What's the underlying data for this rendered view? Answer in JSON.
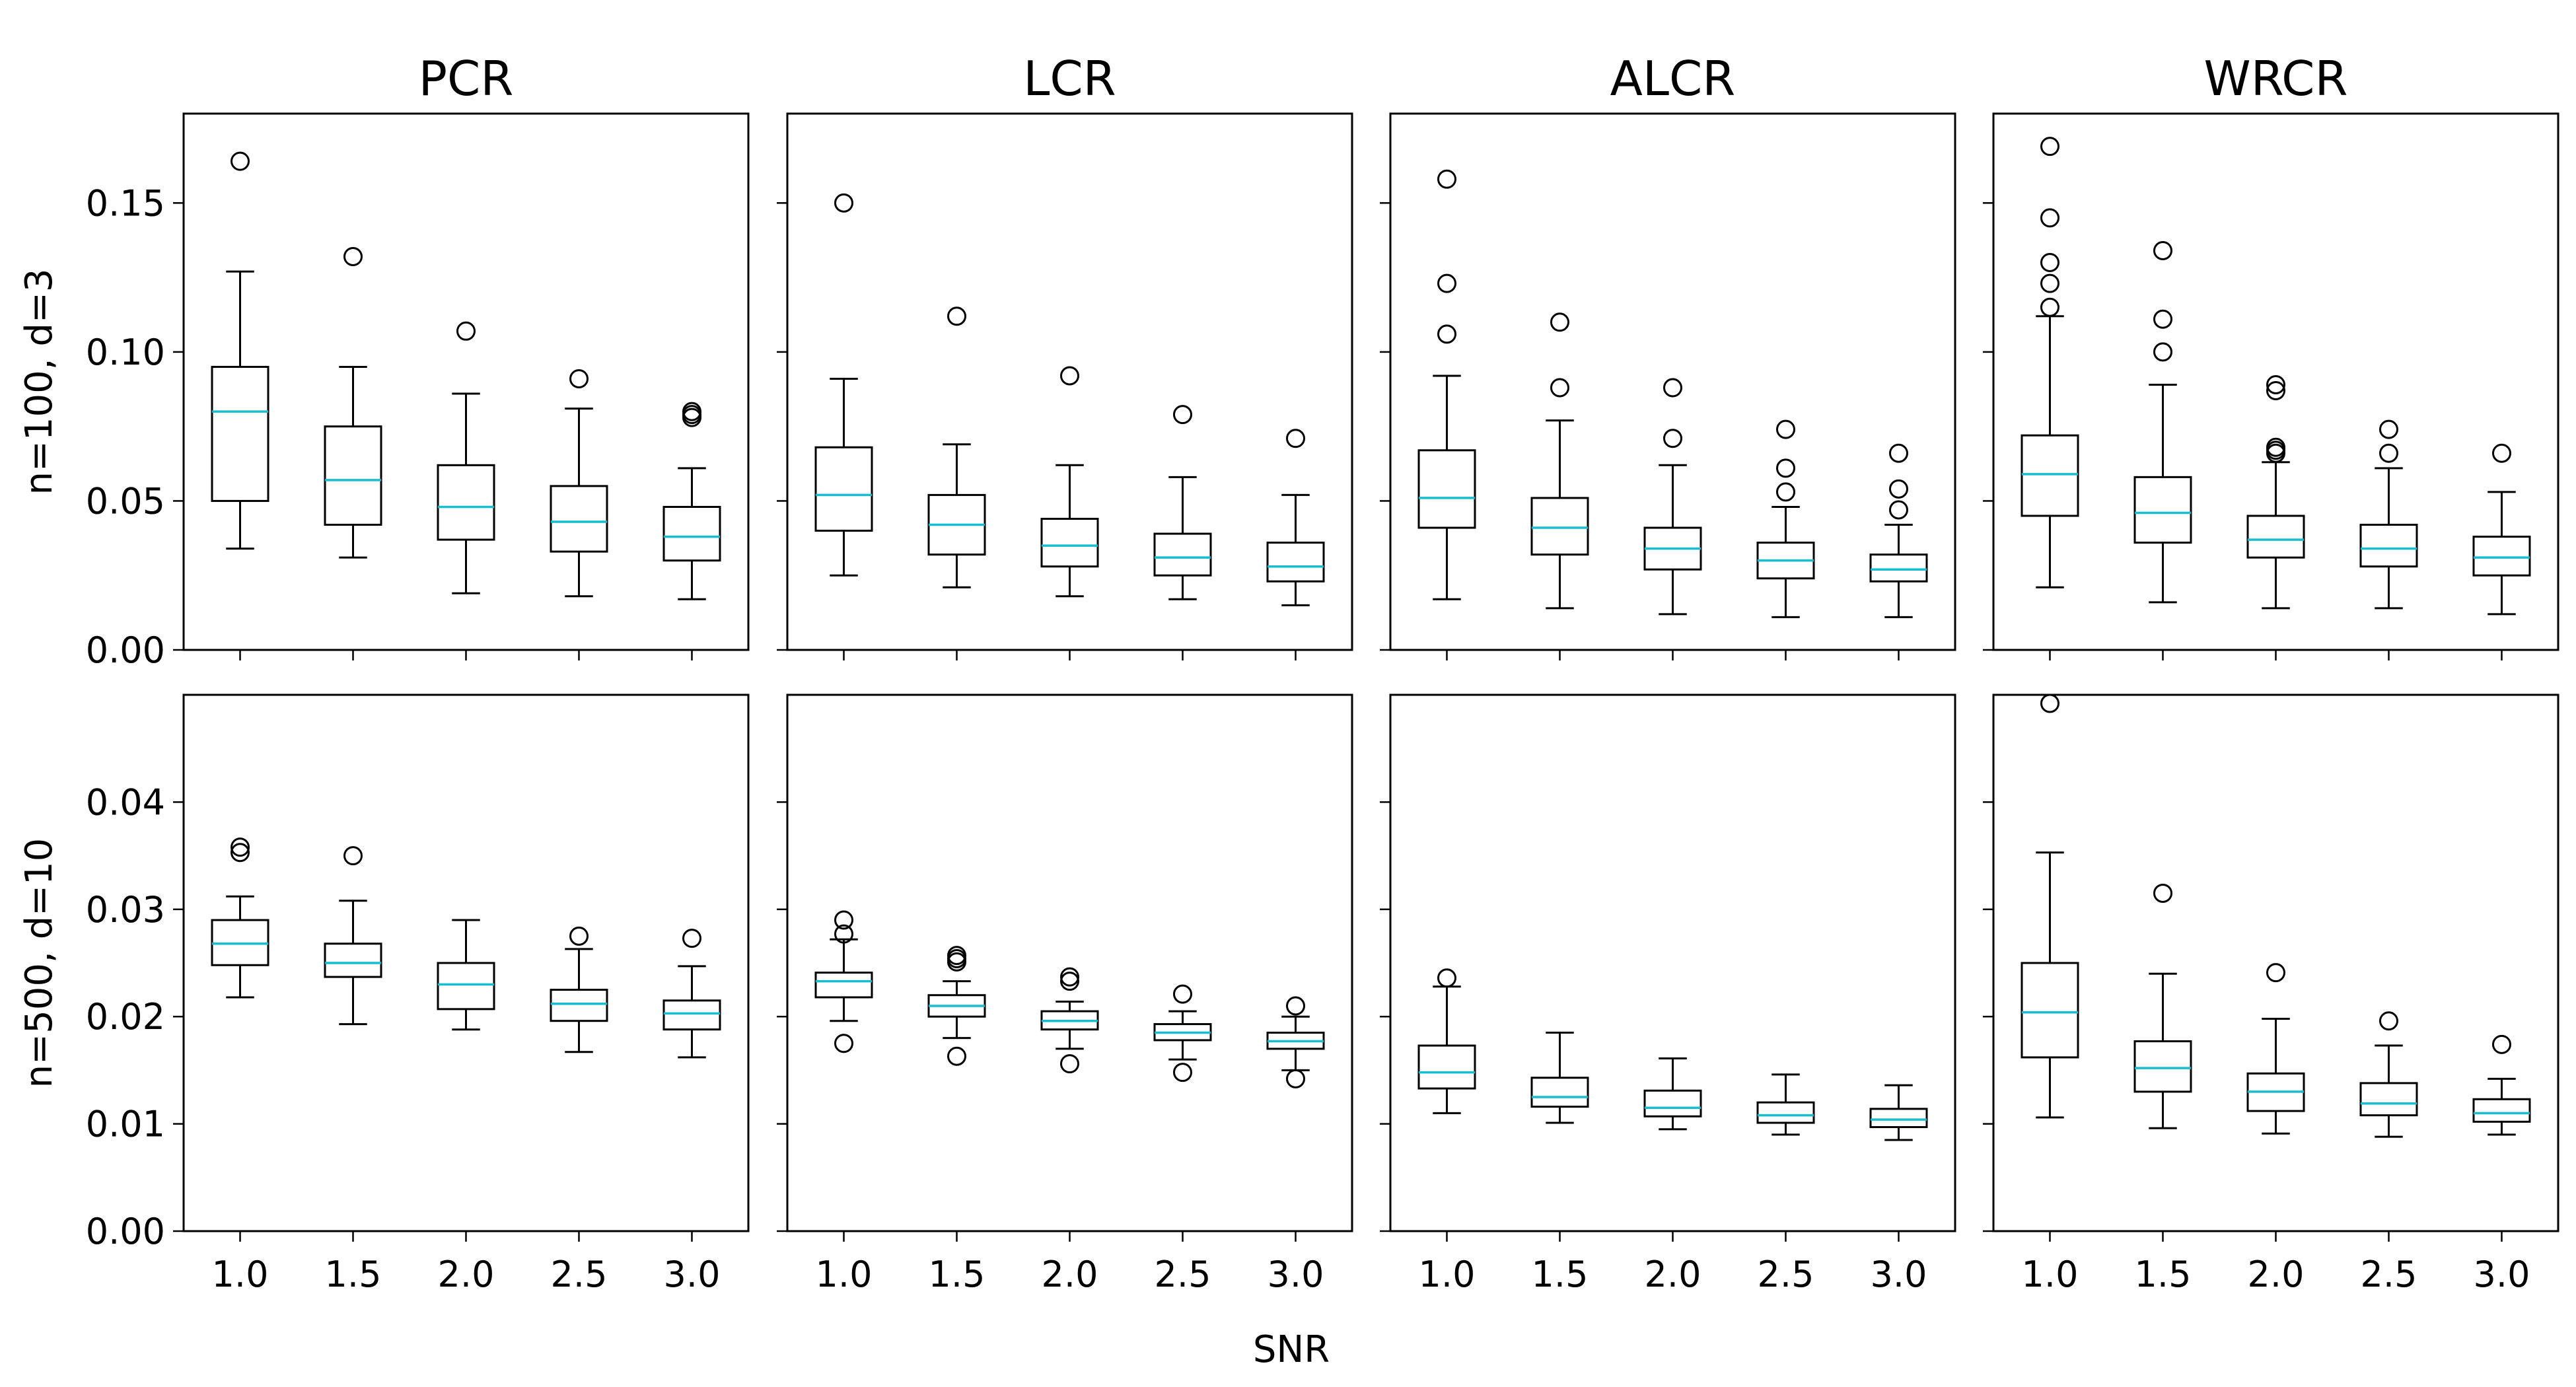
{
  "chart_data": {
    "type": "boxplot",
    "xlabel": "SNR",
    "categories": [
      "1.0",
      "1.5",
      "2.0",
      "2.5",
      "3.0"
    ],
    "column_titles": [
      "PCR",
      "LCR",
      "ALCR",
      "WRCR"
    ],
    "row_labels": [
      "n=100, d=3",
      "n=500, d=10"
    ],
    "rows": [
      {
        "ylim": [
          0,
          0.18
        ],
        "yticks": [
          0.0,
          0.05,
          0.1,
          0.15
        ],
        "ytick_labels": [
          "0.00",
          "0.05",
          "0.10",
          "0.15"
        ],
        "panels": [
          {
            "title": "PCR",
            "boxes": [
              {
                "whislo": 0.034,
                "q1": 0.05,
                "med": 0.08,
                "q3": 0.095,
                "whishi": 0.127,
                "fliers": [
                  0.164
                ]
              },
              {
                "whislo": 0.031,
                "q1": 0.042,
                "med": 0.057,
                "q3": 0.075,
                "whishi": 0.095,
                "fliers": [
                  0.132
                ]
              },
              {
                "whislo": 0.019,
                "q1": 0.037,
                "med": 0.048,
                "q3": 0.062,
                "whishi": 0.086,
                "fliers": [
                  0.107
                ]
              },
              {
                "whislo": 0.018,
                "q1": 0.033,
                "med": 0.043,
                "q3": 0.055,
                "whishi": 0.081,
                "fliers": [
                  0.091
                ]
              },
              {
                "whislo": 0.017,
                "q1": 0.03,
                "med": 0.038,
                "q3": 0.048,
                "whishi": 0.061,
                "fliers": [
                  0.078,
                  0.079,
                  0.08
                ]
              }
            ]
          },
          {
            "title": "LCR",
            "boxes": [
              {
                "whislo": 0.025,
                "q1": 0.04,
                "med": 0.052,
                "q3": 0.068,
                "whishi": 0.091,
                "fliers": [
                  0.15
                ]
              },
              {
                "whislo": 0.021,
                "q1": 0.032,
                "med": 0.042,
                "q3": 0.052,
                "whishi": 0.069,
                "fliers": [
                  0.112
                ]
              },
              {
                "whislo": 0.018,
                "q1": 0.028,
                "med": 0.035,
                "q3": 0.044,
                "whishi": 0.062,
                "fliers": [
                  0.092
                ]
              },
              {
                "whislo": 0.017,
                "q1": 0.025,
                "med": 0.031,
                "q3": 0.039,
                "whishi": 0.058,
                "fliers": [
                  0.079
                ]
              },
              {
                "whislo": 0.015,
                "q1": 0.023,
                "med": 0.028,
                "q3": 0.036,
                "whishi": 0.052,
                "fliers": [
                  0.071
                ]
              }
            ]
          },
          {
            "title": "ALCR",
            "boxes": [
              {
                "whislo": 0.017,
                "q1": 0.041,
                "med": 0.051,
                "q3": 0.067,
                "whishi": 0.092,
                "fliers": [
                  0.106,
                  0.123,
                  0.158
                ]
              },
              {
                "whislo": 0.014,
                "q1": 0.032,
                "med": 0.041,
                "q3": 0.051,
                "whishi": 0.077,
                "fliers": [
                  0.088,
                  0.11
                ]
              },
              {
                "whislo": 0.012,
                "q1": 0.027,
                "med": 0.034,
                "q3": 0.041,
                "whishi": 0.062,
                "fliers": [
                  0.071,
                  0.088
                ]
              },
              {
                "whislo": 0.011,
                "q1": 0.024,
                "med": 0.03,
                "q3": 0.036,
                "whishi": 0.048,
                "fliers": [
                  0.053,
                  0.061,
                  0.074
                ]
              },
              {
                "whislo": 0.011,
                "q1": 0.023,
                "med": 0.027,
                "q3": 0.032,
                "whishi": 0.042,
                "fliers": [
                  0.047,
                  0.054,
                  0.066
                ]
              }
            ]
          },
          {
            "title": "WRCR",
            "boxes": [
              {
                "whislo": 0.021,
                "q1": 0.045,
                "med": 0.059,
                "q3": 0.072,
                "whishi": 0.112,
                "fliers": [
                  0.115,
                  0.123,
                  0.13,
                  0.145,
                  0.169
                ]
              },
              {
                "whislo": 0.016,
                "q1": 0.036,
                "med": 0.046,
                "q3": 0.058,
                "whishi": 0.089,
                "fliers": [
                  0.1,
                  0.111,
                  0.134
                ]
              },
              {
                "whislo": 0.014,
                "q1": 0.031,
                "med": 0.037,
                "q3": 0.045,
                "whishi": 0.063,
                "fliers": [
                  0.066,
                  0.067,
                  0.068,
                  0.087,
                  0.089
                ]
              },
              {
                "whislo": 0.014,
                "q1": 0.028,
                "med": 0.034,
                "q3": 0.042,
                "whishi": 0.061,
                "fliers": [
                  0.066,
                  0.074
                ]
              },
              {
                "whislo": 0.012,
                "q1": 0.025,
                "med": 0.031,
                "q3": 0.038,
                "whishi": 0.053,
                "fliers": [
                  0.066
                ]
              }
            ]
          }
        ]
      },
      {
        "ylim": [
          0,
          0.05
        ],
        "yticks": [
          0.0,
          0.01,
          0.02,
          0.03,
          0.04
        ],
        "ytick_labels": [
          "0.00",
          "0.01",
          "0.02",
          "0.03",
          "0.04"
        ],
        "panels": [
          {
            "title": "PCR",
            "boxes": [
              {
                "whislo": 0.0218,
                "q1": 0.0248,
                "med": 0.0268,
                "q3": 0.029,
                "whishi": 0.0312,
                "fliers": [
                  0.0353,
                  0.0358
                ]
              },
              {
                "whislo": 0.0193,
                "q1": 0.0237,
                "med": 0.025,
                "q3": 0.0268,
                "whishi": 0.0308,
                "fliers": [
                  0.035
                ]
              },
              {
                "whislo": 0.0188,
                "q1": 0.0207,
                "med": 0.023,
                "q3": 0.025,
                "whishi": 0.029,
                "fliers": []
              },
              {
                "whislo": 0.0167,
                "q1": 0.0196,
                "med": 0.0212,
                "q3": 0.0225,
                "whishi": 0.0263,
                "fliers": [
                  0.0275
                ]
              },
              {
                "whislo": 0.0162,
                "q1": 0.0188,
                "med": 0.0203,
                "q3": 0.0215,
                "whishi": 0.0247,
                "fliers": [
                  0.0273
                ]
              }
            ]
          },
          {
            "title": "LCR",
            "boxes": [
              {
                "whislo": 0.0196,
                "q1": 0.0218,
                "med": 0.0233,
                "q3": 0.0241,
                "whishi": 0.0272,
                "fliers": [
                  0.0175,
                  0.0277,
                  0.029
                ]
              },
              {
                "whislo": 0.018,
                "q1": 0.02,
                "med": 0.021,
                "q3": 0.022,
                "whishi": 0.0233,
                "fliers": [
                  0.0163,
                  0.0251,
                  0.0254,
                  0.0257
                ]
              },
              {
                "whislo": 0.017,
                "q1": 0.0188,
                "med": 0.0196,
                "q3": 0.0205,
                "whishi": 0.0214,
                "fliers": [
                  0.0156,
                  0.0233,
                  0.0237
                ]
              },
              {
                "whislo": 0.016,
                "q1": 0.0178,
                "med": 0.0185,
                "q3": 0.0193,
                "whishi": 0.0205,
                "fliers": [
                  0.0148,
                  0.0221
                ]
              },
              {
                "whislo": 0.015,
                "q1": 0.017,
                "med": 0.0177,
                "q3": 0.0185,
                "whishi": 0.02,
                "fliers": [
                  0.0142,
                  0.021
                ]
              }
            ]
          },
          {
            "title": "ALCR",
            "boxes": [
              {
                "whislo": 0.011,
                "q1": 0.0133,
                "med": 0.0148,
                "q3": 0.0173,
                "whishi": 0.0228,
                "fliers": [
                  0.0236
                ]
              },
              {
                "whislo": 0.0101,
                "q1": 0.0116,
                "med": 0.0125,
                "q3": 0.0143,
                "whishi": 0.0185,
                "fliers": []
              },
              {
                "whislo": 0.0095,
                "q1": 0.0107,
                "med": 0.0115,
                "q3": 0.0131,
                "whishi": 0.0161,
                "fliers": []
              },
              {
                "whislo": 0.009,
                "q1": 0.0101,
                "med": 0.0108,
                "q3": 0.012,
                "whishi": 0.0146,
                "fliers": []
              },
              {
                "whislo": 0.0085,
                "q1": 0.0097,
                "med": 0.0104,
                "q3": 0.0114,
                "whishi": 0.0136,
                "fliers": []
              }
            ]
          },
          {
            "title": "WRCR",
            "boxes": [
              {
                "whislo": 0.0106,
                "q1": 0.0162,
                "med": 0.0204,
                "q3": 0.025,
                "whishi": 0.0353,
                "fliers": [
                  0.0492
                ]
              },
              {
                "whislo": 0.0096,
                "q1": 0.013,
                "med": 0.0152,
                "q3": 0.0177,
                "whishi": 0.024,
                "fliers": [
                  0.0315
                ]
              },
              {
                "whislo": 0.0091,
                "q1": 0.0112,
                "med": 0.013,
                "q3": 0.0147,
                "whishi": 0.0198,
                "fliers": [
                  0.0241
                ]
              },
              {
                "whislo": 0.0088,
                "q1": 0.0108,
                "med": 0.0119,
                "q3": 0.0138,
                "whishi": 0.0173,
                "fliers": [
                  0.0196
                ]
              },
              {
                "whislo": 0.009,
                "q1": 0.0102,
                "med": 0.011,
                "q3": 0.0123,
                "whishi": 0.0142,
                "fliers": [
                  0.0174
                ]
              }
            ]
          }
        ]
      }
    ],
    "colors": {
      "box": "#000000",
      "median": "#17becf",
      "flier_edge": "#000000"
    },
    "grid": false,
    "legend": "none"
  }
}
